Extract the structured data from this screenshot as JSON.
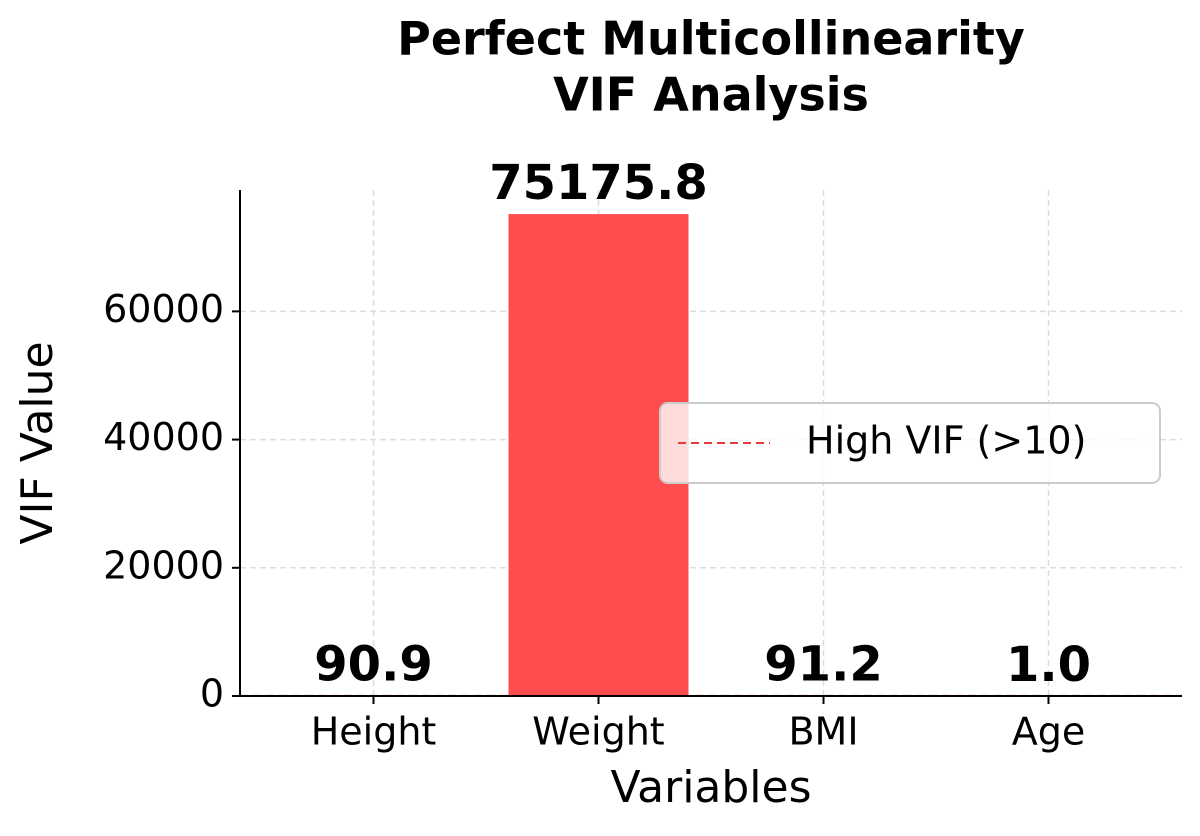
{
  "chart_data": {
    "type": "bar",
    "title": [
      "Perfect Multicollinearity",
      "VIF Analysis"
    ],
    "x_label": "Variables",
    "y_label": "VIF Value",
    "categories": [
      "Height",
      "Weight",
      "BMI",
      "Age"
    ],
    "values": [
      90.9,
      75175.8,
      91.2,
      1.0
    ],
    "value_labels": [
      "90.9",
      "75175.8",
      "91.2",
      "1.0"
    ],
    "color": "#ff4c4c",
    "ylim": [
      0,
      78934.6
    ],
    "yticks": [
      0,
      20000,
      40000,
      60000
    ],
    "threshold": {
      "value": 10,
      "label": "High VIF (>10)",
      "color": "#e63c3c"
    },
    "grid": true,
    "legend_loc": "center right"
  }
}
